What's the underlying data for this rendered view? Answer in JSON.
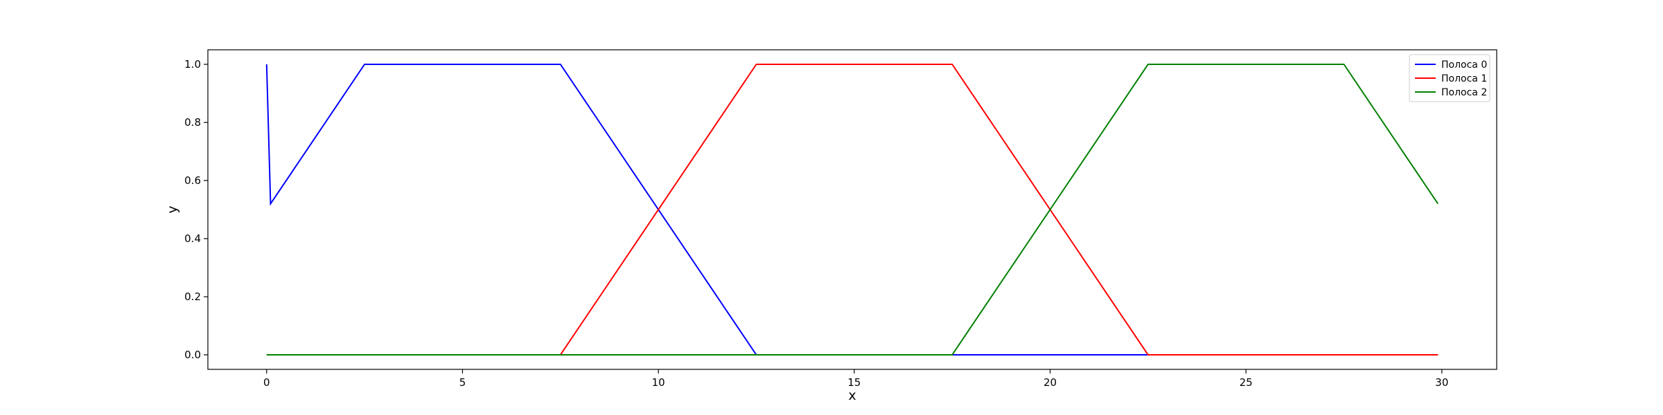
{
  "chart_data": {
    "type": "line",
    "title": "",
    "xlabel": "x",
    "ylabel": "y",
    "xlim": [
      -1.5,
      31.4
    ],
    "ylim": [
      -0.05,
      1.05
    ],
    "xticks": [
      0,
      5,
      10,
      15,
      20,
      25,
      30
    ],
    "yticks": [
      0.0,
      0.2,
      0.4,
      0.6,
      0.8,
      1.0
    ],
    "xtick_labels": [
      "0",
      "5",
      "10",
      "15",
      "20",
      "25",
      "30"
    ],
    "ytick_labels": [
      "0.0",
      "0.2",
      "0.4",
      "0.6",
      "0.8",
      "1.0"
    ],
    "grid": false,
    "legend_position": "top-right",
    "series": [
      {
        "name": "Полоса 0",
        "color": "#0000ff",
        "points": [
          [
            0,
            1.0
          ],
          [
            0.1,
            0.52
          ],
          [
            2.5,
            1.0
          ],
          [
            7.5,
            1.0
          ],
          [
            12.5,
            0.0
          ],
          [
            17.5,
            0.0
          ],
          [
            22.5,
            0.0
          ],
          [
            29.9,
            0.0
          ]
        ]
      },
      {
        "name": "Полоса 1",
        "color": "#ff0000",
        "points": [
          [
            0,
            0.0
          ],
          [
            7.5,
            0.0
          ],
          [
            12.5,
            1.0
          ],
          [
            17.5,
            1.0
          ],
          [
            22.5,
            0.0
          ],
          [
            29.9,
            0.0
          ]
        ]
      },
      {
        "name": "Полоса 2",
        "color": "#008000",
        "points": [
          [
            0,
            0.0
          ],
          [
            17.5,
            0.0
          ],
          [
            22.5,
            1.0
          ],
          [
            27.5,
            1.0
          ],
          [
            29.9,
            0.52
          ]
        ]
      }
    ]
  }
}
